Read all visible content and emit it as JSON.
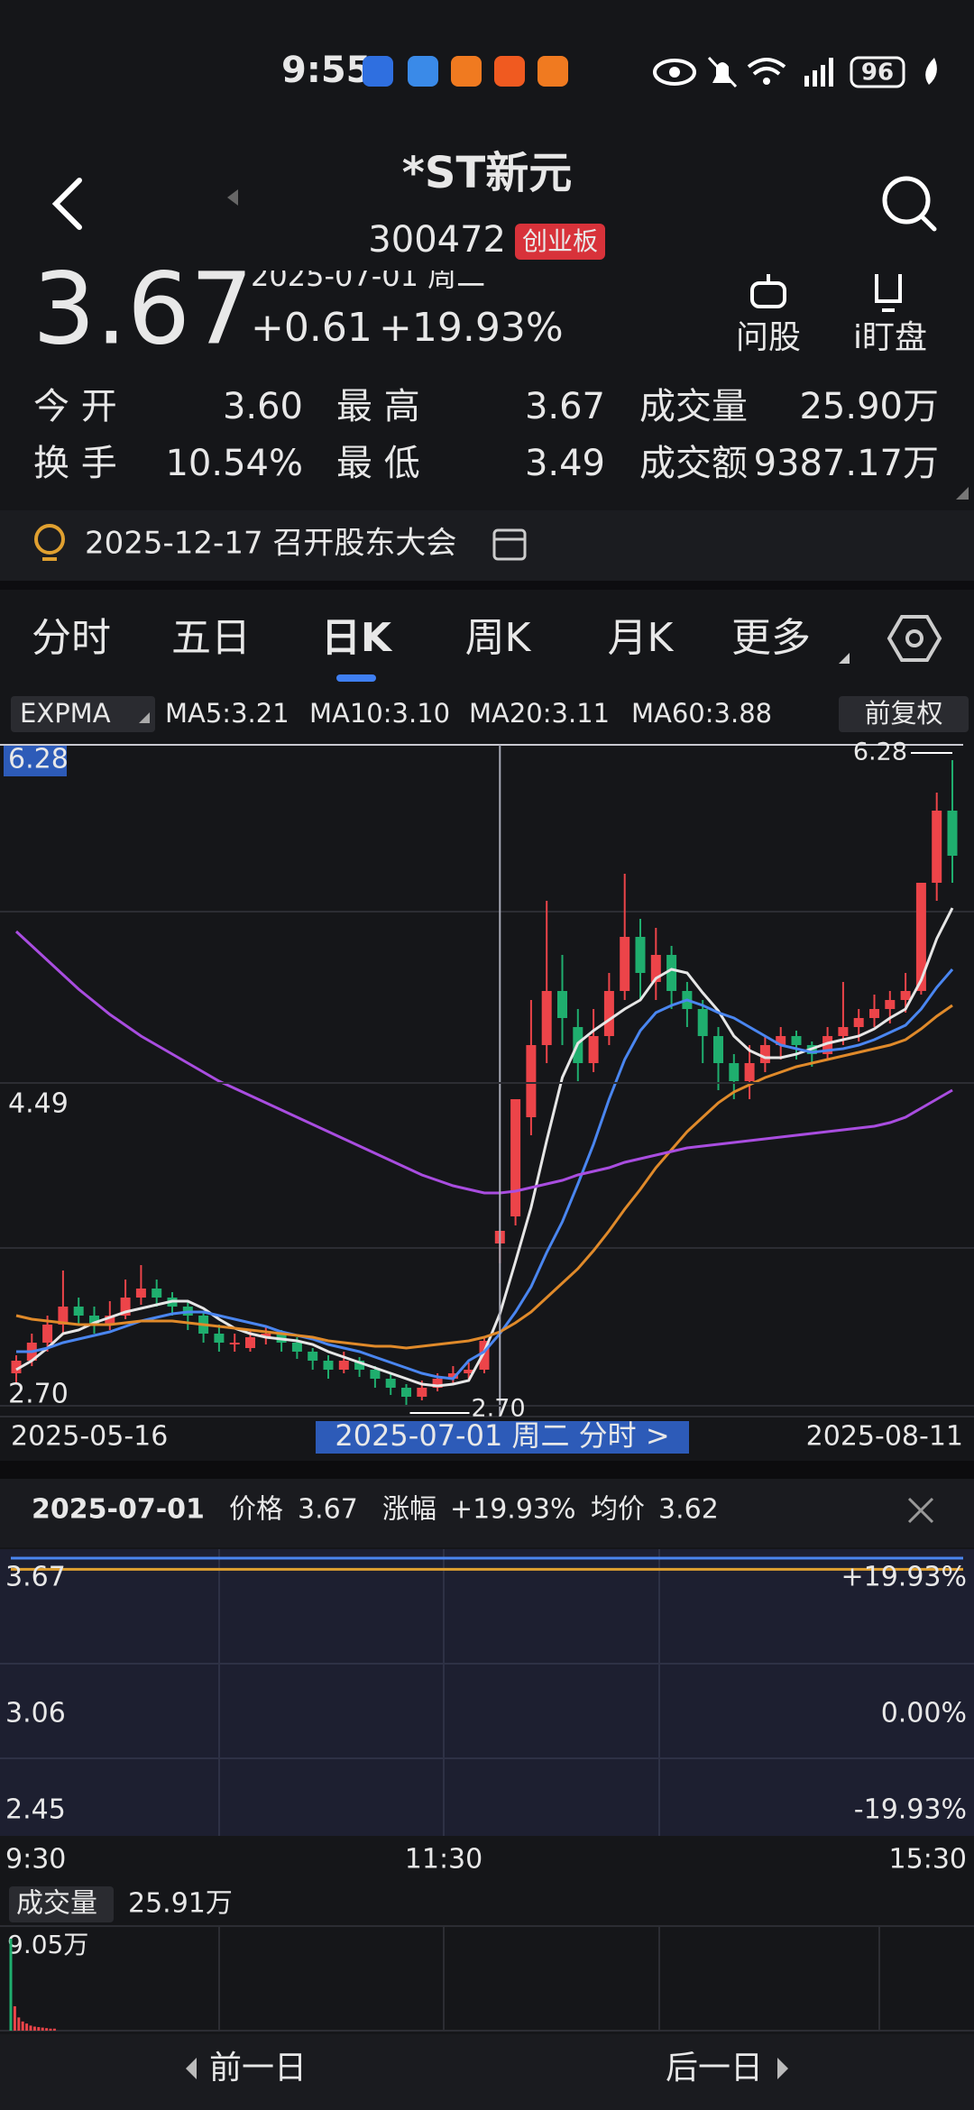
{
  "status_bar": {
    "time": "9:55",
    "battery": "96"
  },
  "header": {
    "title": "*ST新元",
    "code": "300472",
    "board": "创业板"
  },
  "quote": {
    "price": "3.67",
    "date": "2025-07-01 周二",
    "change": "+0.61",
    "change_pct": "+19.93%",
    "actions": [
      "问股",
      "i盯盘"
    ]
  },
  "stats": [
    {
      "label": "今 开",
      "value": "3.60",
      "color": "#ec4449"
    },
    {
      "label": "最 高",
      "value": "3.67",
      "color": "#ec4449"
    },
    {
      "label": "成交量",
      "value": "25.90万",
      "color": "#f2f2f2"
    },
    {
      "label": "换 手",
      "value": "10.54%",
      "color": "#f2f2f2"
    },
    {
      "label": "最 低",
      "value": "3.49",
      "color": "#ec4449"
    },
    {
      "label": "成交额",
      "value": "9387.17万",
      "color": "#f2f2f2"
    }
  ],
  "notice": "2025-12-17 召开股东大会",
  "tabs": [
    "分时",
    "五日",
    "日K",
    "周K",
    "月K",
    "更多"
  ],
  "active_tab": 2,
  "kline": {
    "type": "candlestick",
    "indicator": "EXPMA",
    "adjust": "前复权",
    "series": [
      {
        "name": "MA5:3.21",
        "color": "#e6e6e6",
        "values": [
          2.9,
          2.95,
          3.02,
          3.1,
          3.12,
          3.16,
          3.19,
          3.22,
          3.24,
          3.26,
          3.28,
          3.28,
          3.24,
          3.18,
          3.13,
          3.1,
          3.08,
          3.07,
          3.06,
          3.04,
          3.0,
          2.97,
          2.94,
          2.91,
          2.88,
          2.85,
          2.82,
          2.81,
          2.82,
          2.84,
          3.0,
          3.21,
          3.5,
          3.8,
          4.17,
          4.52,
          4.71,
          4.78,
          4.84,
          4.9,
          4.95,
          5.07,
          5.12,
          5.1,
          4.99,
          4.89,
          4.75,
          4.67,
          4.63,
          4.63,
          4.65,
          4.68,
          4.71,
          4.73,
          4.75,
          4.79,
          4.85,
          4.9,
          5.06,
          5.29,
          5.46
        ]
      },
      {
        "name": "MA10:3.10",
        "color": "#4a86f0",
        "values": [
          3.0,
          3.0,
          3.02,
          3.05,
          3.07,
          3.09,
          3.11,
          3.14,
          3.17,
          3.19,
          3.21,
          3.22,
          3.22,
          3.2,
          3.18,
          3.16,
          3.14,
          3.11,
          3.09,
          3.07,
          3.04,
          3.02,
          3.0,
          2.97,
          2.94,
          2.91,
          2.88,
          2.86,
          2.85,
          2.95,
          3.0,
          3.1,
          3.22,
          3.36,
          3.55,
          3.72,
          3.93,
          4.15,
          4.4,
          4.62,
          4.78,
          4.88,
          4.92,
          4.95,
          4.92,
          4.88,
          4.85,
          4.8,
          4.75,
          4.7,
          4.68,
          4.66,
          4.67,
          4.68,
          4.7,
          4.73,
          4.77,
          4.81,
          4.9,
          5.02,
          5.12
        ]
      },
      {
        "name": "MA20:3.11",
        "color": "#e08a2a",
        "values": [
          3.2,
          3.18,
          3.17,
          3.16,
          3.15,
          3.15,
          3.15,
          3.16,
          3.17,
          3.17,
          3.17,
          3.16,
          3.15,
          3.14,
          3.13,
          3.12,
          3.11,
          3.1,
          3.09,
          3.08,
          3.06,
          3.05,
          3.04,
          3.03,
          3.03,
          3.02,
          3.03,
          3.04,
          3.05,
          3.06,
          3.08,
          3.11,
          3.16,
          3.22,
          3.3,
          3.38,
          3.46,
          3.56,
          3.67,
          3.79,
          3.9,
          4.02,
          4.12,
          4.22,
          4.3,
          4.38,
          4.44,
          4.48,
          4.52,
          4.55,
          4.58,
          4.6,
          4.62,
          4.64,
          4.66,
          4.68,
          4.7,
          4.73,
          4.79,
          4.86,
          4.92
        ]
      },
      {
        "name": "MA60:3.88",
        "color": "#a94de0",
        "values": [
          5.33,
          5.25,
          5.17,
          5.09,
          5.01,
          4.94,
          4.87,
          4.81,
          4.75,
          4.7,
          4.65,
          4.6,
          4.55,
          4.5,
          4.46,
          4.42,
          4.38,
          4.34,
          4.3,
          4.26,
          4.22,
          4.18,
          4.14,
          4.1,
          4.06,
          4.02,
          3.98,
          3.95,
          3.92,
          3.9,
          3.88,
          3.88,
          3.89,
          3.91,
          3.93,
          3.95,
          3.98,
          4.0,
          4.02,
          4.05,
          4.07,
          4.09,
          4.11,
          4.13,
          4.14,
          4.15,
          4.16,
          4.17,
          4.18,
          4.19,
          4.2,
          4.21,
          4.22,
          4.23,
          4.24,
          4.25,
          4.27,
          4.3,
          4.35,
          4.4,
          4.45
        ]
      }
    ],
    "ylim": [
      2.7,
      6.28
    ],
    "yticks": [
      {
        "value": 2.7,
        "label": "2.70"
      },
      {
        "value": 4.49,
        "label": "4.49"
      },
      {
        "value": 6.28,
        "label": "6.28"
      }
    ],
    "max_label": "6.28",
    "min_label": "2.70",
    "max_index": 60,
    "min_index": 25,
    "x_start": "2025-05-16",
    "x_end": "2025-08-11",
    "selected": "2025-07-01 周二 分时 >",
    "selected_index": 31,
    "candles": [
      [
        2.88,
        2.98,
        2.82,
        2.95
      ],
      [
        2.95,
        3.1,
        2.92,
        3.05
      ],
      [
        3.05,
        3.2,
        3.0,
        3.15
      ],
      [
        3.15,
        3.45,
        3.1,
        3.25
      ],
      [
        3.25,
        3.3,
        3.15,
        3.2
      ],
      [
        3.2,
        3.25,
        3.1,
        3.15
      ],
      [
        3.15,
        3.28,
        3.12,
        3.2
      ],
      [
        3.2,
        3.4,
        3.18,
        3.3
      ],
      [
        3.3,
        3.48,
        3.26,
        3.35
      ],
      [
        3.35,
        3.4,
        3.25,
        3.3
      ],
      [
        3.3,
        3.33,
        3.2,
        3.25
      ],
      [
        3.25,
        3.28,
        3.12,
        3.2
      ],
      [
        3.2,
        3.22,
        3.05,
        3.1
      ],
      [
        3.1,
        3.15,
        3.0,
        3.05
      ],
      [
        3.05,
        3.1,
        3.0,
        3.05
      ],
      [
        3.02,
        3.12,
        3.0,
        3.08
      ],
      [
        3.08,
        3.14,
        3.04,
        3.1
      ],
      [
        3.1,
        3.12,
        3.0,
        3.05
      ],
      [
        3.05,
        3.08,
        2.96,
        3.0
      ],
      [
        3.0,
        3.02,
        2.9,
        2.95
      ],
      [
        2.95,
        2.98,
        2.85,
        2.9
      ],
      [
        2.9,
        3.0,
        2.88,
        2.95
      ],
      [
        2.95,
        2.97,
        2.86,
        2.9
      ],
      [
        2.9,
        2.92,
        2.8,
        2.85
      ],
      [
        2.85,
        2.88,
        2.76,
        2.8
      ],
      [
        2.8,
        2.82,
        2.7,
        2.75
      ],
      [
        2.75,
        2.84,
        2.73,
        2.8
      ],
      [
        2.8,
        2.88,
        2.78,
        2.85
      ],
      [
        2.85,
        2.92,
        2.82,
        2.88
      ],
      [
        2.88,
        2.94,
        2.85,
        2.9
      ],
      [
        2.9,
        3.08,
        2.88,
        3.06
      ],
      [
        3.6,
        3.67,
        3.49,
        3.67
      ],
      [
        3.75,
        4.4,
        3.7,
        4.4
      ],
      [
        4.3,
        4.95,
        4.2,
        4.7
      ],
      [
        4.7,
        5.5,
        4.6,
        5.0
      ],
      [
        5.0,
        5.2,
        4.7,
        4.85
      ],
      [
        4.8,
        4.9,
        4.5,
        4.6
      ],
      [
        4.6,
        4.9,
        4.55,
        4.75
      ],
      [
        4.75,
        5.1,
        4.7,
        5.0
      ],
      [
        5.0,
        5.65,
        4.95,
        5.3
      ],
      [
        5.3,
        5.4,
        4.95,
        5.1
      ],
      [
        5.05,
        5.35,
        4.95,
        5.2
      ],
      [
        5.2,
        5.25,
        4.9,
        5.0
      ],
      [
        5.0,
        5.05,
        4.8,
        4.9
      ],
      [
        4.9,
        4.95,
        4.6,
        4.75
      ],
      [
        4.75,
        4.8,
        4.45,
        4.6
      ],
      [
        4.6,
        4.65,
        4.4,
        4.5
      ],
      [
        4.5,
        4.7,
        4.4,
        4.6
      ],
      [
        4.6,
        4.75,
        4.55,
        4.7
      ],
      [
        4.7,
        4.8,
        4.62,
        4.75
      ],
      [
        4.75,
        4.78,
        4.62,
        4.7
      ],
      [
        4.7,
        4.72,
        4.58,
        4.65
      ],
      [
        4.65,
        4.8,
        4.62,
        4.75
      ],
      [
        4.75,
        5.05,
        4.7,
        4.8
      ],
      [
        4.8,
        4.9,
        4.72,
        4.85
      ],
      [
        4.85,
        4.98,
        4.8,
        4.9
      ],
      [
        4.9,
        5.0,
        4.82,
        4.95
      ],
      [
        4.95,
        5.1,
        4.88,
        5.0
      ],
      [
        5.0,
        5.6,
        4.98,
        5.6
      ],
      [
        5.6,
        6.1,
        5.5,
        6.0
      ],
      [
        6.0,
        6.28,
        5.6,
        5.75
      ]
    ]
  },
  "intraday": {
    "date": "2025-07-01",
    "fields": [
      {
        "label": "价格",
        "value": "3.67",
        "color": "#ec4449"
      },
      {
        "label": "涨幅",
        "value": "+19.93%",
        "color": "#ec4449"
      },
      {
        "label": "均价",
        "value": "3.62",
        "color": "#e0a030"
      }
    ],
    "price": 3.67,
    "avg": 3.62,
    "ylim": [
      2.45,
      3.67
    ],
    "yticks": [
      2.45,
      3.06,
      3.67
    ],
    "y2lim": [
      -19.93,
      19.93
    ],
    "y2ticks": [
      {
        "value": -19.93,
        "label": "-19.93%"
      },
      {
        "value": 0,
        "label": "0.00%"
      },
      {
        "value": 19.93,
        "label": "+19.93%"
      }
    ],
    "times": [
      "9:30",
      "11:30",
      "15:30"
    ]
  },
  "volume": {
    "label": "成交量",
    "total": "25.91万",
    "max_label": "9.05万",
    "ylim": [
      0,
      9.05
    ],
    "bars": [
      9.05,
      2.4,
      1.3,
      0.9,
      0.7,
      0.5,
      0.4,
      0.35,
      0.3,
      0.25,
      0.2,
      0.2
    ]
  },
  "footer": {
    "prev": "前一日",
    "next": "后一日"
  }
}
